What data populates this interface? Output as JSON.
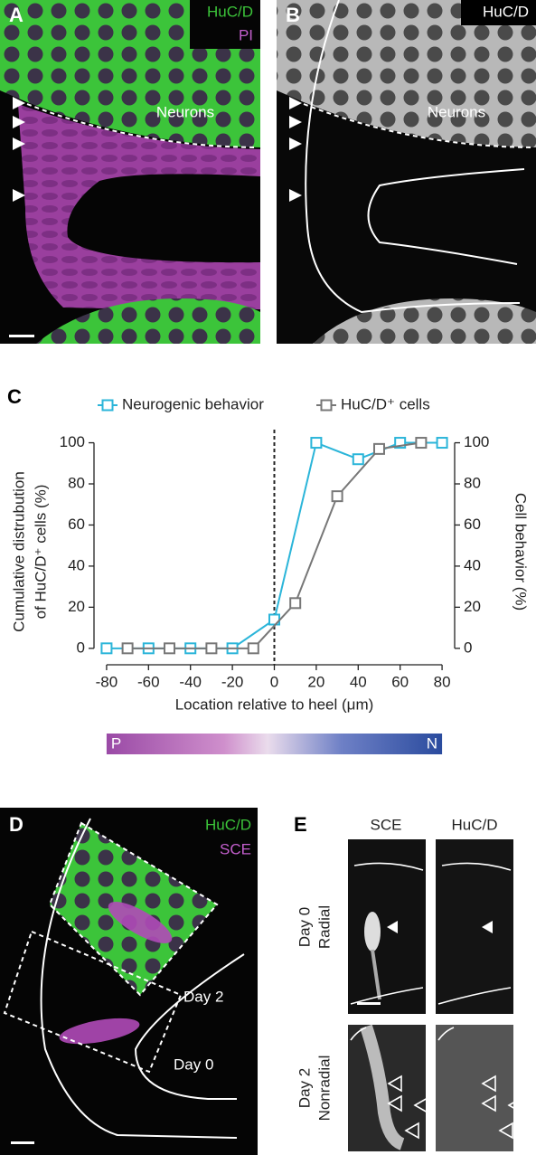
{
  "panels": {
    "A": {
      "label": "A",
      "channels": [
        "HuC/D",
        "PI"
      ],
      "region": "Neurons"
    },
    "B": {
      "label": "B",
      "channel": "HuC/D",
      "region": "Neurons"
    },
    "C": {
      "label": "C"
    },
    "D": {
      "label": "D",
      "channels": [
        "HuC/D",
        "SCE"
      ],
      "stages": [
        "Day 2",
        "Day 0"
      ]
    },
    "E": {
      "label": "E",
      "columns": [
        "SCE",
        "HuC/D"
      ],
      "rows": [
        [
          "Day 0",
          "Radial"
        ],
        [
          "Day 2",
          "Nonradial"
        ]
      ]
    }
  },
  "chart_data": {
    "type": "line",
    "xlabel": "Location relative to heel (μm)",
    "ylabel": [
      "Cumulative distrubution",
      "of HuC/D⁺ cells (%)"
    ],
    "y2label": "Cell behavior (%)",
    "xlim": [
      -86,
      86
    ],
    "xticks": [
      -80,
      -60,
      -40,
      -20,
      0,
      20,
      40,
      60,
      80
    ],
    "ylim": [
      -8,
      102
    ],
    "yticks": [
      0,
      20,
      40,
      60,
      80,
      100
    ],
    "y2lim": [
      -8,
      102
    ],
    "y2ticks": [
      0,
      20,
      40,
      60,
      80,
      100
    ],
    "vline": 0,
    "series": [
      {
        "name": "Neurogenic behavior",
        "color": "#2bb5d9",
        "axis": "y2",
        "x": [
          -80,
          -60,
          -40,
          -20,
          0,
          20,
          40,
          60,
          80
        ],
        "values": [
          0,
          0,
          0,
          0,
          14,
          100,
          92,
          100,
          100
        ]
      },
      {
        "name": "HuC/D⁺ cells",
        "color": "#777777",
        "x": [
          -70,
          -50,
          -30,
          -10,
          10,
          30,
          50,
          70
        ],
        "values": [
          0,
          0,
          0,
          0,
          22,
          74,
          97,
          100
        ]
      }
    ],
    "colorbar": {
      "start": "P",
      "end": "N"
    }
  }
}
